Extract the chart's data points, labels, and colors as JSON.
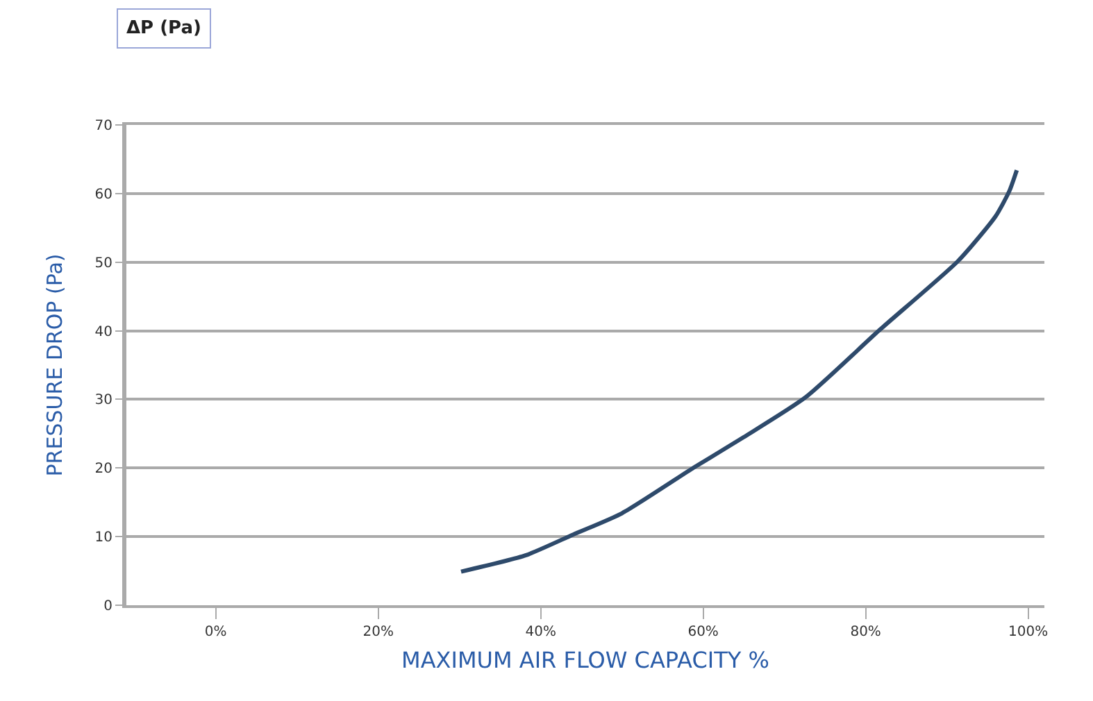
{
  "chart_data": {
    "type": "line",
    "title": "ΔP (Pa)",
    "xlabel": "MAXIMUM AIR FLOW CAPACITY %",
    "ylabel": "PRESSURE DROP (Pa)",
    "x": [
      30.2,
      38.2,
      44,
      50,
      58.9,
      65,
      72.6,
      81.7,
      91.4,
      96,
      97.7,
      98.6
    ],
    "series": [
      {
        "color": "#2e4a6b",
        "values": [
          4.9,
          7.3,
          10.3,
          13.4,
          20.1,
          24.5,
          30.3,
          40.1,
          50.2,
          56.7,
          60.4,
          63.4
        ]
      }
    ],
    "xlim": [
      -11,
      102
    ],
    "xticks": [
      {
        "value": 0,
        "label": "0%"
      },
      {
        "value": 20,
        "label": "20%"
      },
      {
        "value": 40,
        "label": "40%"
      },
      {
        "value": 60,
        "label": "60%"
      },
      {
        "value": 80,
        "label": "80%"
      },
      {
        "value": 100,
        "label": "100%"
      }
    ],
    "ylim": [
      0,
      70
    ],
    "yticks": [
      0,
      10,
      20,
      30,
      40,
      50,
      60,
      70
    ],
    "grid": "y",
    "marker": "none",
    "line_style": "solid"
  }
}
